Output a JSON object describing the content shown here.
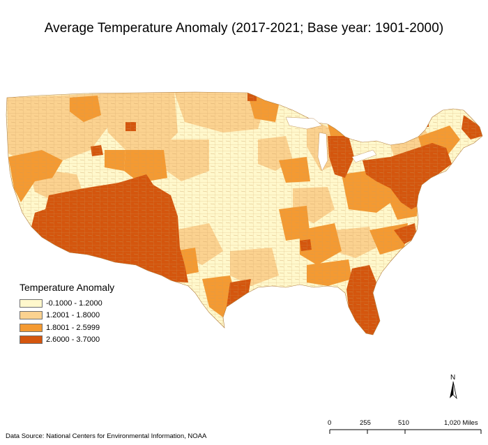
{
  "title": "Average Temperature Anomaly (2017-2021; Base year: 1901-2000)",
  "legend": {
    "title": "Temperature Anomaly",
    "classes": [
      {
        "label": "-0.1000 - 1.2000",
        "color": "#fff8cc"
      },
      {
        "label": "1.2001 - 1.8000",
        "color": "#fbd290"
      },
      {
        "label": "1.8001 - 2.5999",
        "color": "#f49a32"
      },
      {
        "label": "2.6000 - 3.7000",
        "color": "#d4560e"
      }
    ]
  },
  "source": "Data Source: National Centers for Environmental Information, NOAA",
  "north_arrow": {
    "label": "N"
  },
  "scale_bar": {
    "ticks": [
      "0",
      "255",
      "510",
      "1,020 Miles"
    ]
  },
  "colors": {
    "county_outline": "#c89a5a",
    "background": "#ffffff"
  }
}
